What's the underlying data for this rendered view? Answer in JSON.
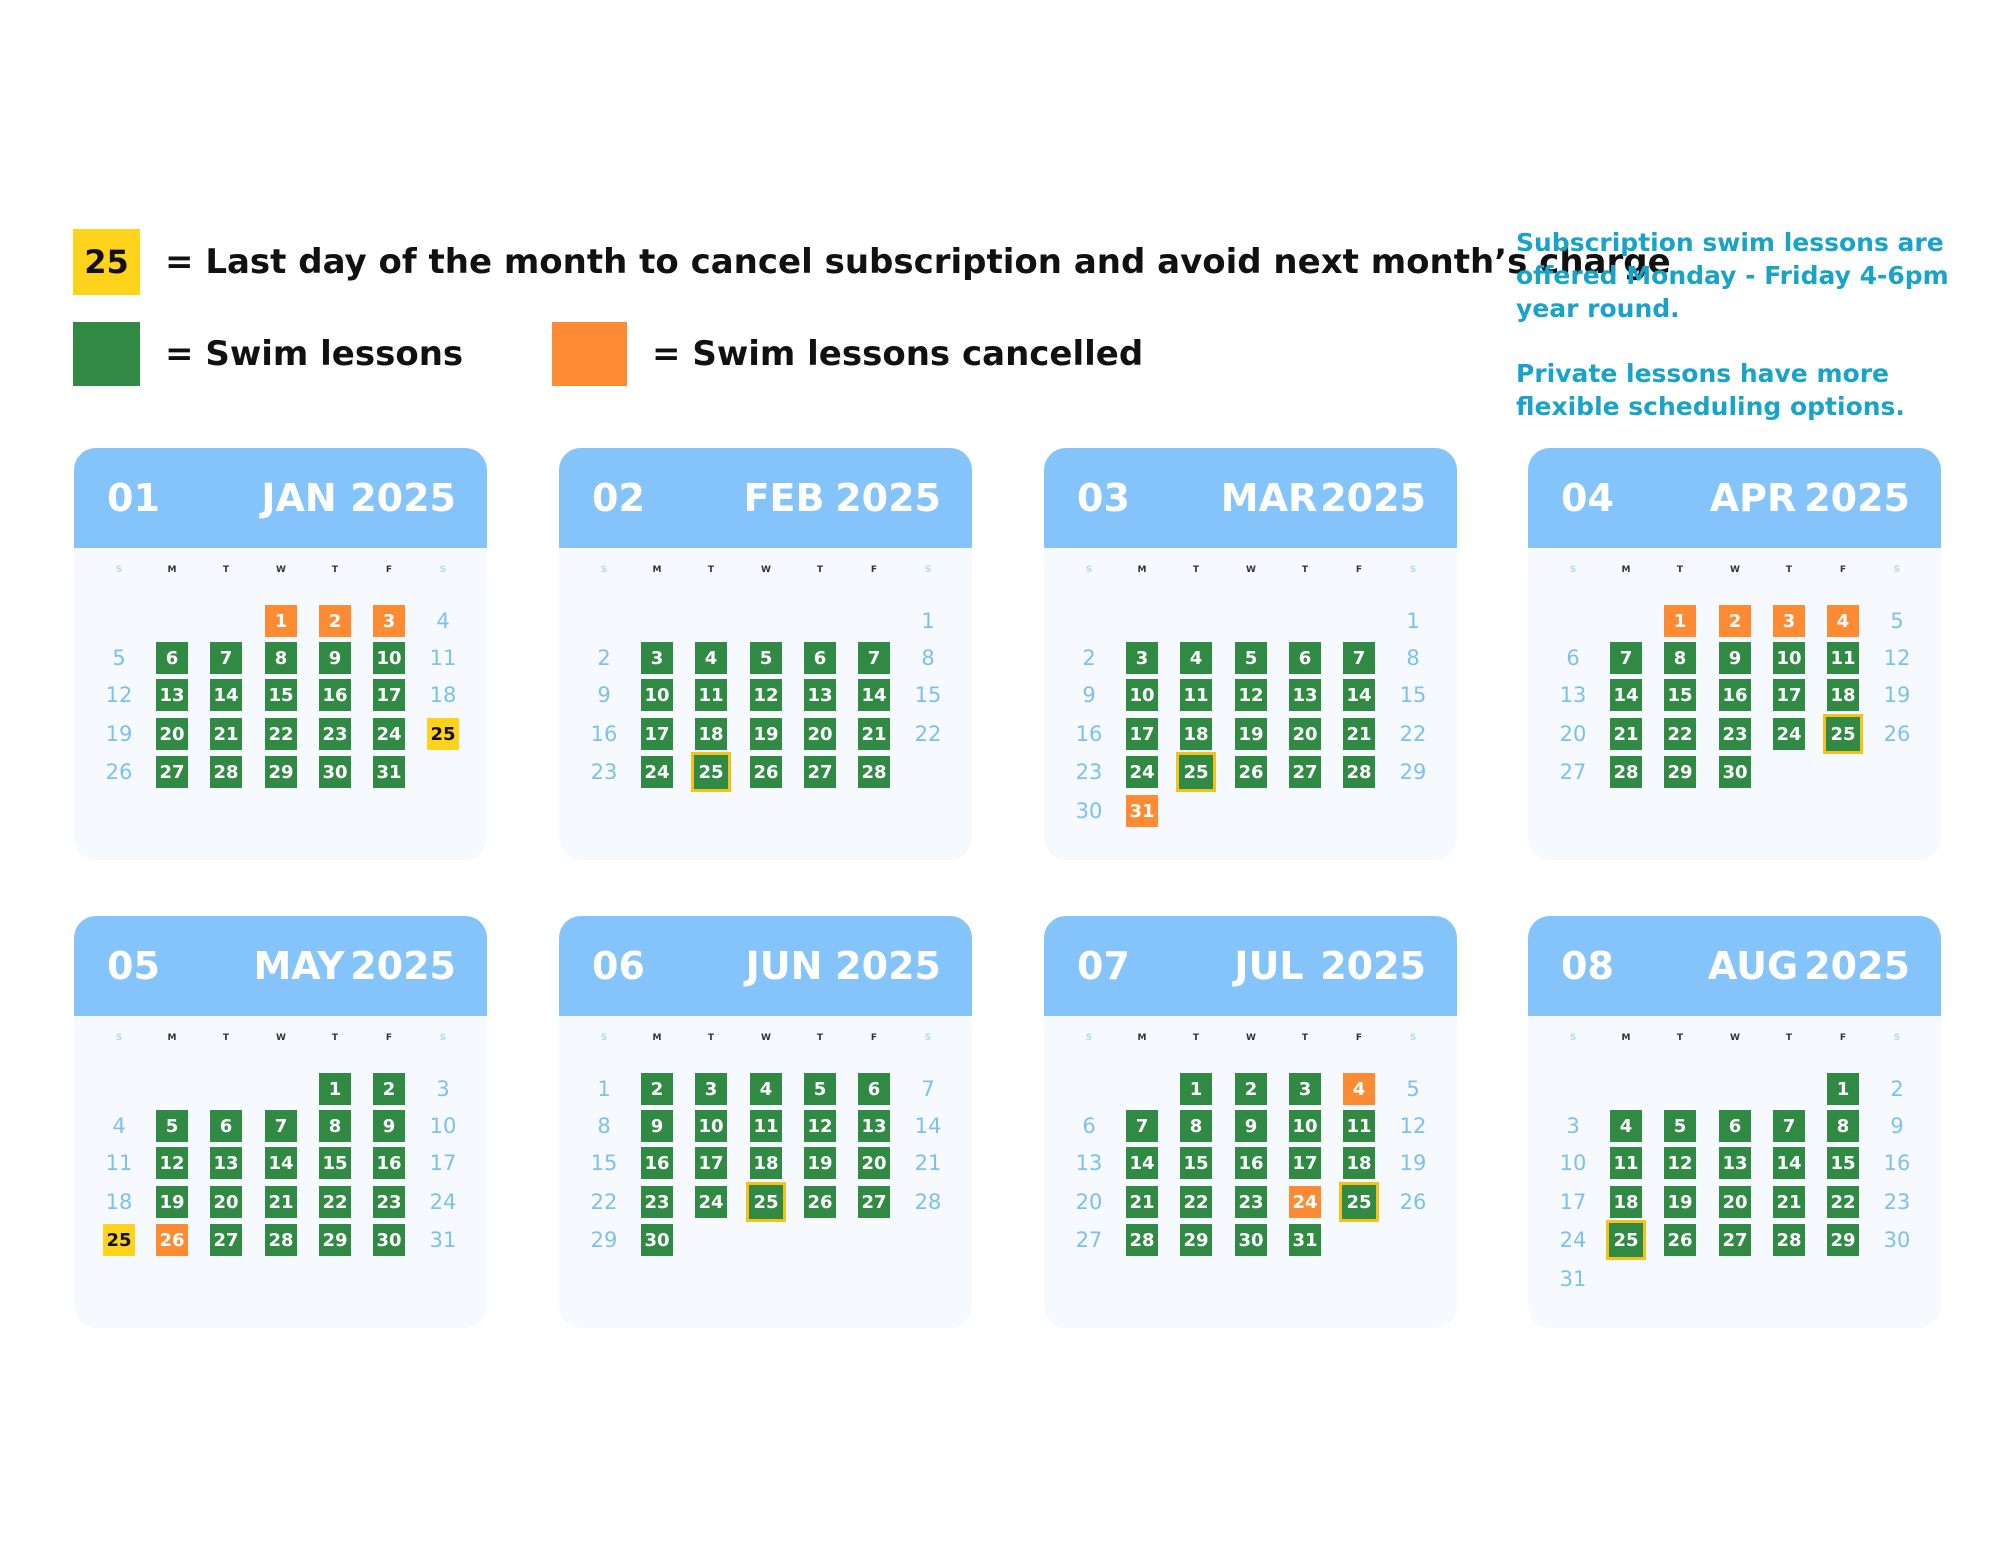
{
  "legend": {
    "deadline_swatch": "25",
    "deadline_text": "= Last day of the month to cancel subscription and avoid next month’s charge",
    "lessons_text": "= Swim lessons",
    "cancelled_text": "= Swim lessons cancelled"
  },
  "info": {
    "line1": "Subscription swim lessons are offered  Monday - Friday 4-6pm year round.",
    "line2": "Private lessons have more flexible scheduling options."
  },
  "colors": {
    "lesson": "#318a43",
    "cancelled": "#fd8b34",
    "deadline": "#ffd21c",
    "header": "#85c4fa",
    "info_text": "#19a3c9"
  },
  "weekdays": [
    "S",
    "M",
    "T",
    "W",
    "T",
    "F",
    "S"
  ],
  "months": [
    {
      "num": "01",
      "name": "JAN",
      "year": "2025",
      "days": 31,
      "start": 3,
      "cancelled": [
        1,
        2,
        3
      ],
      "deadline_style": "yellow"
    },
    {
      "num": "02",
      "name": "FEB",
      "year": "2025",
      "days": 28,
      "start": 6,
      "cancelled": [],
      "deadline_style": "outline"
    },
    {
      "num": "03",
      "name": "MAR",
      "year": "2025",
      "days": 31,
      "start": 6,
      "cancelled": [
        31
      ],
      "deadline_style": "outline"
    },
    {
      "num": "04",
      "name": "APR",
      "year": "2025",
      "days": 30,
      "start": 2,
      "cancelled": [
        1,
        2,
        3,
        4
      ],
      "deadline_style": "outline"
    },
    {
      "num": "05",
      "name": "MAY",
      "year": "2025",
      "days": 31,
      "start": 4,
      "cancelled": [
        26
      ],
      "deadline_style": "yellow"
    },
    {
      "num": "06",
      "name": "JUN",
      "year": "2025",
      "days": 30,
      "start": 0,
      "cancelled": [],
      "deadline_style": "outline"
    },
    {
      "num": "07",
      "name": "JUL",
      "year": "2025",
      "days": 31,
      "start": 2,
      "cancelled": [
        4,
        24
      ],
      "deadline_style": "outline"
    },
    {
      "num": "08",
      "name": "AUG",
      "year": "2025",
      "days": 31,
      "start": 5,
      "cancelled": [],
      "deadline_style": "outline"
    }
  ]
}
